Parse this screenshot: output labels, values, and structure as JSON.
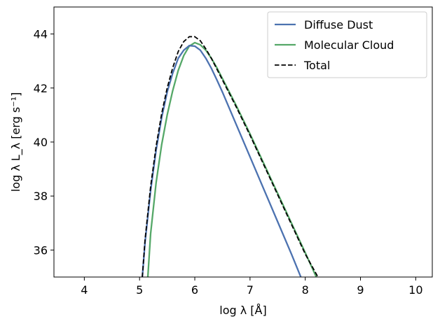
{
  "chart_data": {
    "type": "line",
    "xlabel": "log  λ [Å]",
    "ylabel": "log  λ L_λ [erg s⁻¹]",
    "xlim": [
      3.45,
      10.3
    ],
    "ylim": [
      35,
      45
    ],
    "xticks": [
      4,
      5,
      6,
      7,
      8,
      9,
      10
    ],
    "yticks": [
      36,
      38,
      40,
      42,
      44
    ],
    "legend_position": "top-right",
    "series": [
      {
        "name": "Diffuse Dust",
        "color": "#4c72b0",
        "style": "solid",
        "x": [
          5.05,
          5.1,
          5.2,
          5.3,
          5.4,
          5.5,
          5.6,
          5.7,
          5.8,
          5.9,
          6.0,
          6.1,
          6.2,
          6.3,
          6.4,
          6.5,
          6.75,
          7.0,
          7.25,
          7.5,
          7.75,
          7.92
        ],
        "y": [
          35.0,
          36.3,
          38.2,
          39.7,
          40.9,
          41.85,
          42.55,
          43.1,
          43.4,
          43.57,
          43.55,
          43.4,
          43.1,
          42.73,
          42.3,
          41.85,
          40.65,
          39.45,
          38.25,
          37.05,
          35.85,
          35.0
        ]
      },
      {
        "name": "Molecular Cloud",
        "color": "#55a868",
        "style": "solid",
        "x": [
          5.15,
          5.2,
          5.3,
          5.4,
          5.5,
          5.6,
          5.7,
          5.8,
          5.9,
          6.0,
          6.1,
          6.2,
          6.3,
          6.4,
          6.5,
          6.75,
          7.0,
          7.25,
          7.5,
          7.75,
          8.0,
          8.2
        ],
        "y": [
          35.0,
          36.6,
          38.5,
          39.9,
          41.0,
          41.9,
          42.65,
          43.2,
          43.55,
          43.68,
          43.6,
          43.4,
          43.1,
          42.75,
          42.35,
          41.35,
          40.3,
          39.2,
          38.1,
          37.0,
          35.9,
          35.0
        ]
      },
      {
        "name": "Total",
        "color": "#000000",
        "style": "dashed",
        "x": [
          5.05,
          5.1,
          5.2,
          5.3,
          5.4,
          5.5,
          5.6,
          5.7,
          5.8,
          5.9,
          6.0,
          6.1,
          6.2,
          6.3,
          6.4,
          6.5,
          6.75,
          7.0,
          7.25,
          7.5,
          7.75,
          8.0,
          8.23
        ],
        "y": [
          35.0,
          36.4,
          38.35,
          39.85,
          41.05,
          42.0,
          42.75,
          43.35,
          43.72,
          43.9,
          43.9,
          43.75,
          43.45,
          43.1,
          42.7,
          42.3,
          41.3,
          40.25,
          39.15,
          38.05,
          36.95,
          35.85,
          35.0
        ]
      }
    ]
  }
}
